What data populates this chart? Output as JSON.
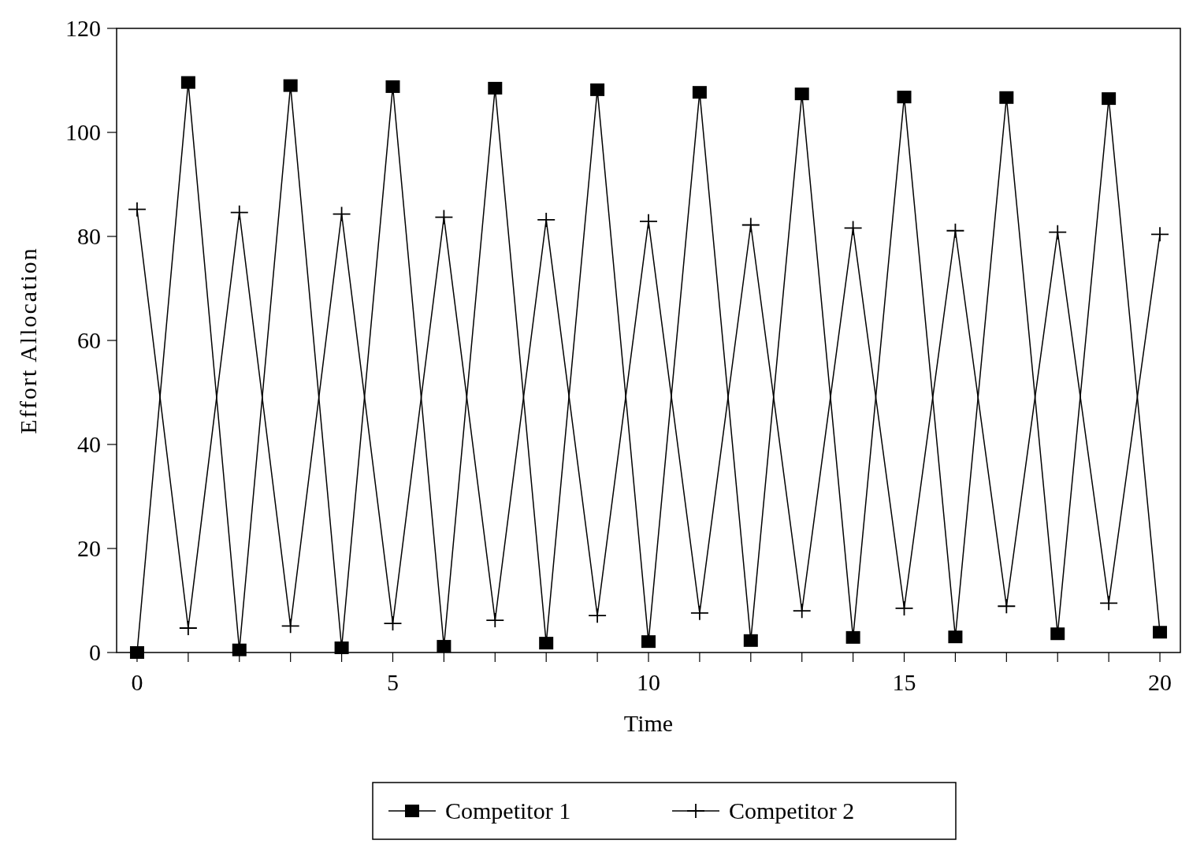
{
  "chart_data": {
    "type": "line",
    "xlabel": "Time",
    "ylabel": "Effort Allocation",
    "x": [
      0,
      1,
      2,
      3,
      4,
      5,
      6,
      7,
      8,
      9,
      10,
      11,
      12,
      13,
      14,
      15,
      16,
      17,
      18,
      19,
      20
    ],
    "series": [
      {
        "name": "Competitor 1",
        "color": "#000000",
        "marker": "square",
        "values": [
          0,
          109.6,
          0.5,
          109.0,
          0.9,
          108.8,
          1.2,
          108.5,
          1.8,
          108.2,
          2.1,
          107.7,
          2.3,
          107.4,
          2.9,
          106.8,
          3.0,
          106.7,
          3.6,
          106.5,
          3.9
        ]
      },
      {
        "name": "Competitor 2",
        "color": "#000000",
        "marker": "cross",
        "values": [
          85.2,
          4.7,
          84.6,
          5.1,
          84.3,
          5.6,
          83.7,
          6.2,
          83.2,
          7.1,
          82.9,
          7.6,
          82.2,
          8.0,
          81.6,
          8.5,
          81.1,
          8.9,
          80.8,
          9.5,
          80.4
        ]
      }
    ],
    "xlim": [
      -0.4,
      20.4
    ],
    "xticks": [
      0,
      {
        "value": 1,
        "label": null
      },
      {
        "value": 2,
        "label": null
      },
      {
        "value": 3,
        "label": null
      },
      {
        "value": 4,
        "label": null
      },
      5,
      {
        "value": 6,
        "label": null
      },
      {
        "value": 7,
        "label": null
      },
      {
        "value": 8,
        "label": null
      },
      {
        "value": 9,
        "label": null
      },
      10,
      {
        "value": 11,
        "label": null
      },
      {
        "value": 12,
        "label": null
      },
      {
        "value": 13,
        "label": null
      },
      {
        "value": 14,
        "label": null
      },
      15,
      {
        "value": 16,
        "label": null
      },
      {
        "value": 17,
        "label": null
      },
      {
        "value": 18,
        "label": null
      },
      {
        "value": 19,
        "label": null
      },
      20
    ],
    "ylim": [
      0,
      120
    ],
    "yticks": [
      0,
      20,
      40,
      60,
      80,
      100,
      120
    ],
    "grid": false,
    "legend": "bottom",
    "line_style": "solid"
  }
}
